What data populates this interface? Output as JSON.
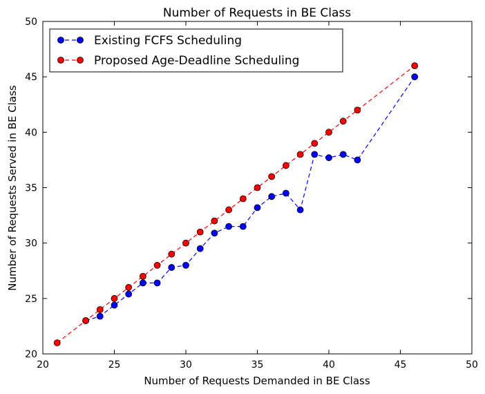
{
  "chart_data": {
    "type": "line",
    "title": "Number of Requests in BE Class",
    "xlabel": "Number of Requests Demanded in BE Class",
    "ylabel": "Number of Requests Served in BE Class",
    "xlim": [
      20,
      50
    ],
    "ylim": [
      20,
      50
    ],
    "xticks": [
      20,
      25,
      30,
      35,
      40,
      45,
      50
    ],
    "yticks": [
      20,
      25,
      30,
      35,
      40,
      45,
      50
    ],
    "grid": false,
    "legend_position": "top-left",
    "series": [
      {
        "name": "Existing FCFS Scheduling",
        "color": "#0000ff",
        "line_style": "dashed",
        "marker": "circle",
        "x": [
          23,
          24,
          25,
          26,
          27,
          28,
          29,
          30,
          31,
          32,
          33,
          34,
          35,
          36,
          37,
          38,
          39,
          40,
          41,
          42,
          46
        ],
        "y": [
          23,
          23.4,
          24.4,
          25.4,
          26.4,
          26.4,
          27.8,
          28,
          29.5,
          30.9,
          31.5,
          31.5,
          33.2,
          34.2,
          34.5,
          33,
          38,
          37.7,
          38,
          37.5,
          45
        ]
      },
      {
        "name": "Proposed Age-Deadline Scheduling",
        "color": "#ff0000",
        "line_style": "dashed",
        "marker": "circle",
        "x": [
          21,
          23,
          24,
          25,
          26,
          27,
          28,
          29,
          30,
          31,
          32,
          33,
          34,
          35,
          36,
          37,
          38,
          39,
          40,
          41,
          42,
          46
        ],
        "y": [
          21,
          23,
          24,
          25,
          26,
          27,
          28,
          29,
          30,
          31,
          32,
          33,
          34,
          35,
          36,
          37,
          38,
          39,
          40,
          41,
          42,
          46
        ]
      }
    ]
  }
}
